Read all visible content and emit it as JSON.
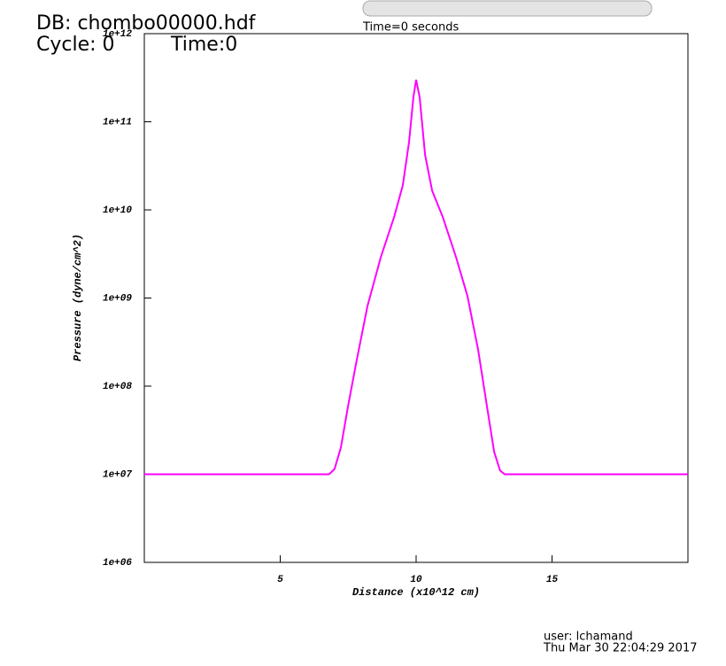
{
  "header": {
    "database": "DB: chombo00000.hdf",
    "cycle": "Cycle: 0",
    "time": "Time:0"
  },
  "time_slider": {
    "label": "Time=0 seconds"
  },
  "footer": {
    "user": "user: lchamand",
    "date": "Thu Mar 30 22:04:29 2017"
  },
  "chart_data": {
    "type": "line",
    "x_label": "Distance (x10^12 cm)",
    "y_label": "Pressure (dyne/cm^2)",
    "y_log": true,
    "xlim": [
      0,
      20
    ],
    "ylim": [
      1000000,
      1000000000000
    ],
    "xticks": [
      5,
      10,
      15
    ],
    "yticks": [
      {
        "value": 1000000,
        "label": "1e+06"
      },
      {
        "value": 10000000,
        "label": "1e+07"
      },
      {
        "value": 100000000,
        "label": "1e+08"
      },
      {
        "value": 1000000000,
        "label": "1e+09"
      },
      {
        "value": 10000000000,
        "label": "1e+10"
      },
      {
        "value": 100000000000,
        "label": "1e+11"
      },
      {
        "value": 1000000000000,
        "label": "1e+12"
      }
    ],
    "series": [
      {
        "color": "#ff00ff",
        "x": [
          0,
          6.8,
          7.0,
          7.23,
          7.49,
          7.79,
          8.21,
          8.7,
          9.19,
          9.51,
          9.74,
          9.9,
          10.0,
          10.13,
          10.33,
          10.59,
          10.98,
          11.47,
          11.89,
          12.28,
          12.61,
          12.87,
          13.09,
          13.26,
          20
        ],
        "values": [
          10000000,
          10000000,
          11500000,
          20000000,
          58000000,
          180000000,
          810000000,
          2900000000,
          8300000000,
          19000000000,
          59000000000,
          190000000000,
          300000000000,
          190000000000,
          42000000000,
          16500000000,
          8300000000,
          2900000000,
          1050000000,
          260000000,
          58000000,
          18000000,
          11000000,
          10000000,
          10000000
        ]
      }
    ]
  }
}
